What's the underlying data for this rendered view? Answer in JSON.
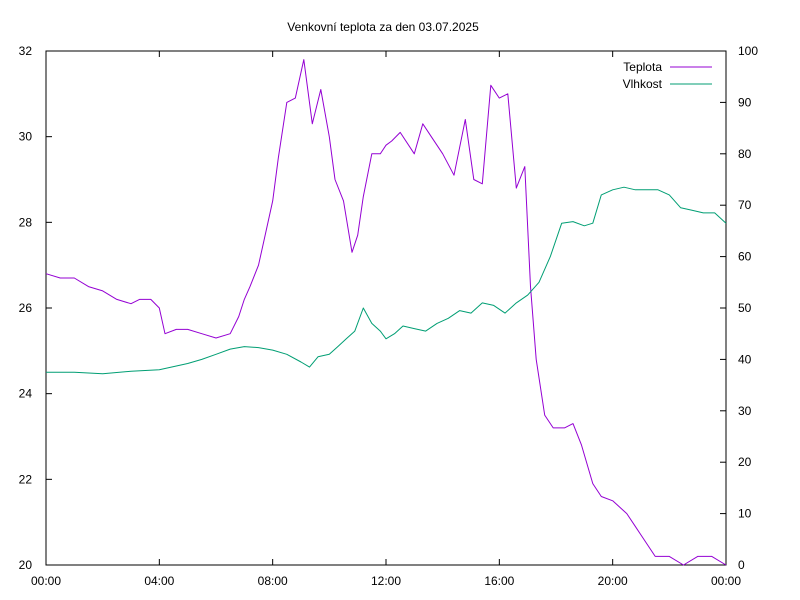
{
  "chart_data": {
    "type": "line",
    "title": "Venkovní teplota za den 03.07.2025",
    "xlabel": "",
    "ylabel": "",
    "y2label": "",
    "grid": false,
    "legend_position": "top-right",
    "x_ticks": [
      "00:00",
      "04:00",
      "08:00",
      "12:00",
      "16:00",
      "20:00",
      "00:00"
    ],
    "x_range_hours": [
      0,
      24
    ],
    "y_range": [
      20,
      32
    ],
    "y_ticks": [
      20,
      22,
      24,
      26,
      28,
      30,
      32
    ],
    "y2_range": [
      0,
      100
    ],
    "y2_ticks": [
      0,
      10,
      20,
      30,
      40,
      50,
      60,
      70,
      80,
      90,
      100
    ],
    "series": [
      {
        "name": "Teplota",
        "axis": "y",
        "color": "#9400d3",
        "x_hours": [
          0,
          0.5,
          1,
          1.5,
          2,
          2.5,
          3,
          3.3,
          3.7,
          4.0,
          4.2,
          4.6,
          5.0,
          5.5,
          6.0,
          6.5,
          6.8,
          7.0,
          7.2,
          7.5,
          7.7,
          8.0,
          8.2,
          8.5,
          8.8,
          9.1,
          9.4,
          9.7,
          10.0,
          10.2,
          10.5,
          10.8,
          11.0,
          11.2,
          11.5,
          11.8,
          12.0,
          12.2,
          12.5,
          13.0,
          13.3,
          13.6,
          14.0,
          14.4,
          14.8,
          15.1,
          15.4,
          15.7,
          16.0,
          16.3,
          16.6,
          16.9,
          17.1,
          17.3,
          17.6,
          17.9,
          18.3,
          18.6,
          18.9,
          19.3,
          19.6,
          20.0,
          20.5,
          21.0,
          21.5,
          22.0,
          22.5,
          23.0,
          23.5,
          24.0
        ],
        "values": [
          26.8,
          26.7,
          26.7,
          26.5,
          26.4,
          26.2,
          26.1,
          26.2,
          26.2,
          26.0,
          25.4,
          25.5,
          25.5,
          25.4,
          25.3,
          25.4,
          25.8,
          26.2,
          26.5,
          27.0,
          27.6,
          28.5,
          29.5,
          30.8,
          30.9,
          31.8,
          30.3,
          31.1,
          30.0,
          29.0,
          28.5,
          27.3,
          27.7,
          28.6,
          29.6,
          29.6,
          29.8,
          29.9,
          30.1,
          29.6,
          30.3,
          30.0,
          29.6,
          29.1,
          30.4,
          29.0,
          28.9,
          31.2,
          30.9,
          31.0,
          28.8,
          29.3,
          26.5,
          24.8,
          23.5,
          23.2,
          23.2,
          23.3,
          22.8,
          21.9,
          21.6,
          21.5,
          21.2,
          20.7,
          20.2,
          20.2,
          20.0,
          20.2,
          20.2,
          20.0
        ]
      },
      {
        "name": "Vlhkost",
        "axis": "y2",
        "color": "#009e73",
        "x_hours": [
          0,
          1,
          2,
          3,
          4,
          4.5,
          5,
          5.5,
          6,
          6.5,
          7,
          7.5,
          8,
          8.5,
          9,
          9.3,
          9.6,
          10,
          10.3,
          10.6,
          10.9,
          11.2,
          11.5,
          11.8,
          12.0,
          12.3,
          12.6,
          13.0,
          13.4,
          13.8,
          14.2,
          14.6,
          15.0,
          15.4,
          15.8,
          16.2,
          16.6,
          17.0,
          17.4,
          17.8,
          18.2,
          18.6,
          19.0,
          19.3,
          19.6,
          20.0,
          20.4,
          20.8,
          21.2,
          21.6,
          22.0,
          22.4,
          22.8,
          23.2,
          23.6,
          24.0
        ],
        "values": [
          37.5,
          37.5,
          37.2,
          37.7,
          38.0,
          38.6,
          39.2,
          40.0,
          41.0,
          42.0,
          42.5,
          42.3,
          41.8,
          41.0,
          39.5,
          38.5,
          40.5,
          41.0,
          42.5,
          44.0,
          45.5,
          50.0,
          47.0,
          45.5,
          44.0,
          45.0,
          46.5,
          46.0,
          45.5,
          47.0,
          48.0,
          49.5,
          49.0,
          51.0,
          50.5,
          49.0,
          51.0,
          52.5,
          55.0,
          60.0,
          66.5,
          66.8,
          66.0,
          66.5,
          72.0,
          73.0,
          73.5,
          73.0,
          73.0,
          73.0,
          72.0,
          69.5,
          69.0,
          68.5,
          68.5,
          66.5
        ]
      }
    ]
  }
}
